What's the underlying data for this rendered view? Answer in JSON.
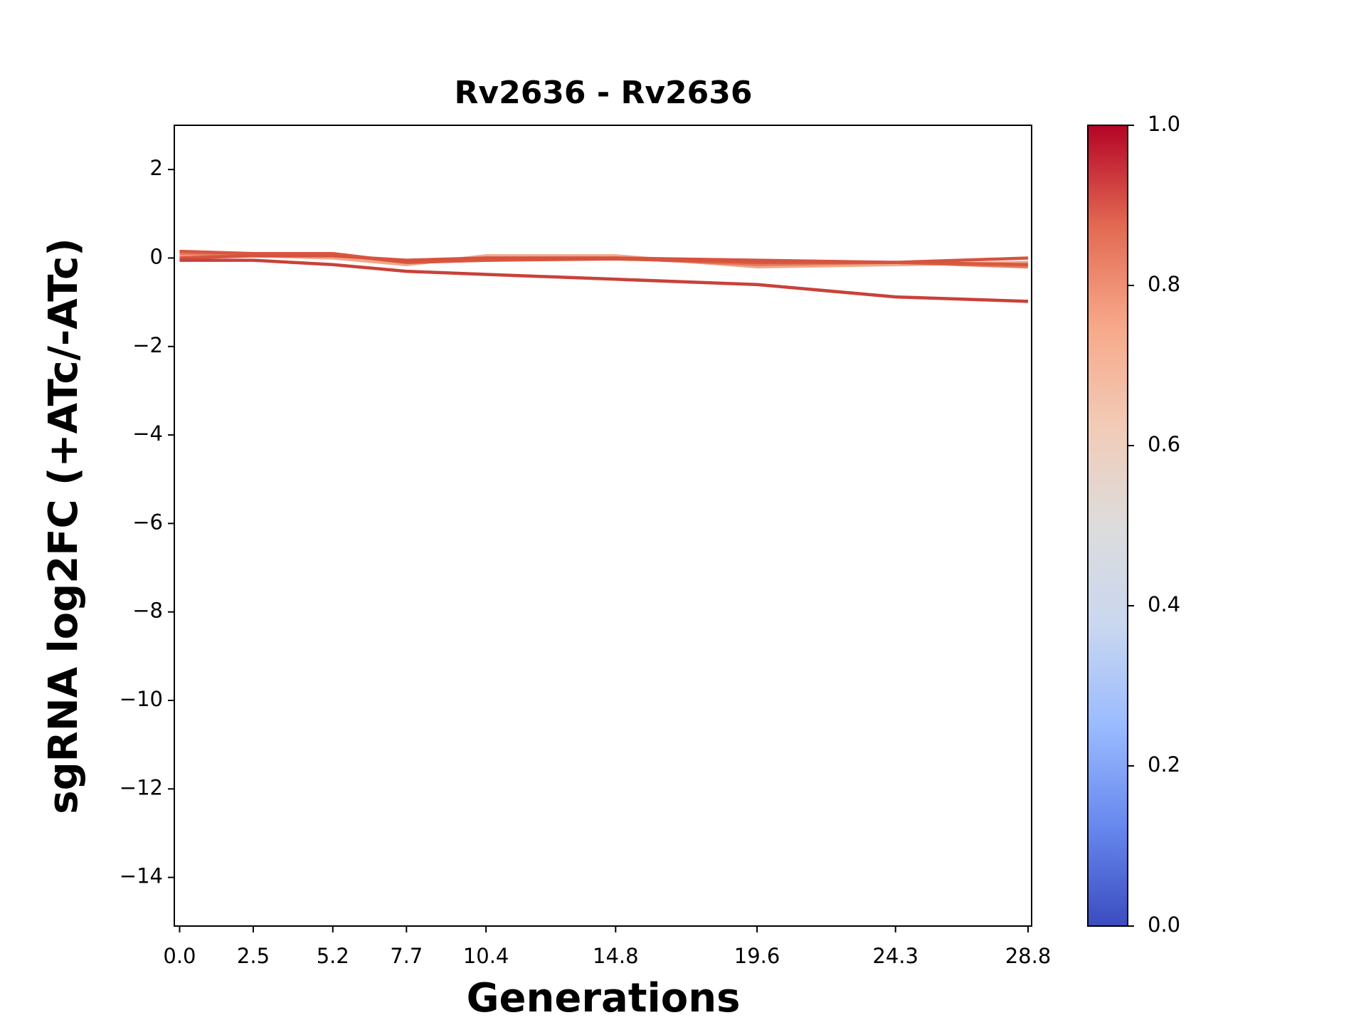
{
  "chart_data": {
    "type": "line",
    "title": "Rv2636 - Rv2636",
    "x_label": "Generations",
    "y_label": "sgRNA log2FC (+ATc/-ATc)",
    "x": [
      0,
      2.5,
      5.2,
      7.7,
      10.4,
      14.8,
      19.6,
      24.3,
      28.8
    ],
    "xlim": [
      -0.18,
      28.92
    ],
    "xticks": [
      {
        "value": 0,
        "label": "0.0"
      },
      2.5,
      5.2,
      7.7,
      10.4,
      14.8,
      19.6,
      24.3,
      28.8
    ],
    "ylim": [
      -15.1,
      3
    ],
    "yticks": [
      {
        "value": -14,
        "label": "−14"
      },
      {
        "value": -12,
        "label": "−12"
      },
      {
        "value": -10,
        "label": "−10"
      },
      {
        "value": -8,
        "label": "−8"
      },
      {
        "value": -6,
        "label": "−6"
      },
      {
        "value": -4,
        "label": "−4"
      },
      {
        "value": -2,
        "label": "−2"
      },
      0,
      2
    ],
    "grid": false,
    "series": [
      {
        "color": "#f0a98a",
        "values": [
          0.05,
          0.05,
          0.0,
          -0.15,
          0.05,
          0.05,
          -0.2,
          -0.15,
          -0.1
        ]
      },
      {
        "color": "#e47a5e",
        "values": [
          0.1,
          0.08,
          0.08,
          -0.1,
          -0.05,
          0.0,
          -0.15,
          -0.1,
          -0.2
        ]
      },
      {
        "color": "#d8583f",
        "values": [
          0.15,
          0.1,
          0.1,
          -0.1,
          -0.05,
          -0.02,
          -0.1,
          -0.1,
          -0.15
        ]
      },
      {
        "color": "#d6533f",
        "values": [
          0.0,
          0.05,
          0.05,
          -0.05,
          0.0,
          0.0,
          -0.05,
          -0.1,
          0.0
        ]
      },
      {
        "color": "#c9413a",
        "values": [
          -0.05,
          -0.05,
          -0.15,
          -0.3,
          -0.37,
          -0.48,
          -0.6,
          -0.88,
          -0.98
        ]
      }
    ],
    "colorbar": {
      "lim": [
        0,
        1
      ],
      "ticks": [
        {
          "value": 0,
          "label": "0.0"
        },
        {
          "value": 0.2,
          "label": "0.2"
        },
        {
          "value": 0.4,
          "label": "0.4"
        },
        {
          "value": 0.6,
          "label": "0.6"
        },
        {
          "value": 0.8,
          "label": "0.8"
        },
        {
          "value": 1,
          "label": "1.0"
        }
      ],
      "colormap": [
        "#3b4cc0",
        "#6788ee",
        "#9abbff",
        "#c9d7f0",
        "#dddcdc",
        "#f2cbb7",
        "#f7a889",
        "#e26952",
        "#b40426"
      ]
    }
  }
}
